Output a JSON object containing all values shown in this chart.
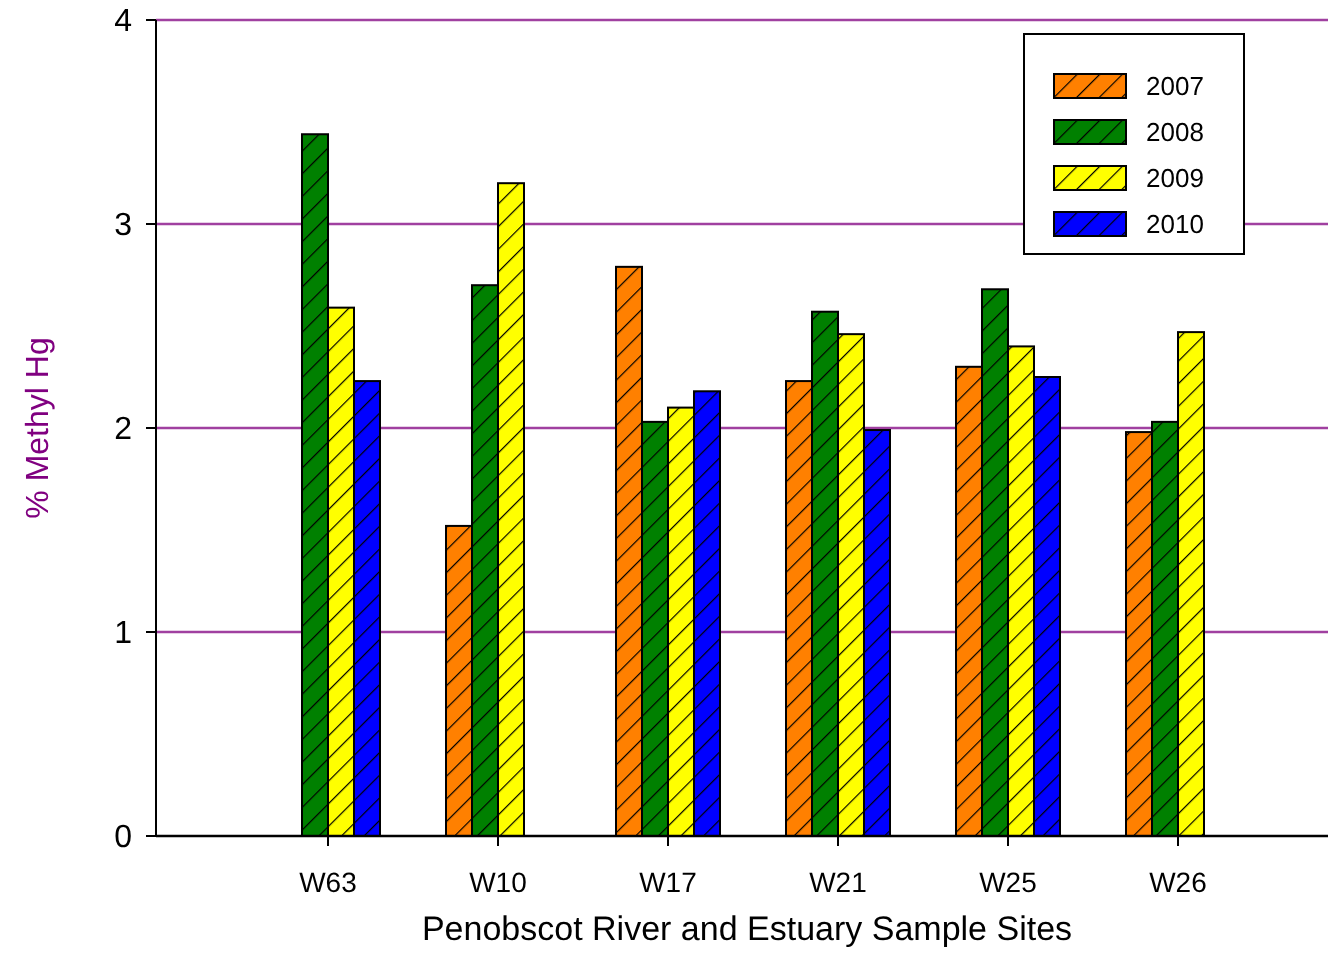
{
  "chart_data": {
    "type": "bar",
    "xlabel": "Penobscot River and Estuary Sample Sites",
    "ylabel": "% Methyl Hg",
    "categories": [
      "W63",
      "W10",
      "W17",
      "W21",
      "W25",
      "W26"
    ],
    "series": [
      {
        "name": "2007",
        "color": "#ff8000",
        "values": [
          null,
          1.52,
          2.79,
          2.23,
          2.3,
          1.98
        ]
      },
      {
        "name": "2008",
        "color": "#008000",
        "values": [
          3.44,
          2.7,
          2.03,
          2.57,
          2.68,
          2.03
        ]
      },
      {
        "name": "2009",
        "color": "#ffff00",
        "values": [
          2.59,
          3.2,
          2.1,
          2.46,
          2.4,
          2.47
        ]
      },
      {
        "name": "2010",
        "color": "#0000ff",
        "values": [
          2.23,
          null,
          2.18,
          1.99,
          2.25,
          null
        ]
      }
    ],
    "ylim": [
      0,
      4
    ],
    "yticks": [
      0,
      1,
      2,
      3,
      4
    ],
    "grid": "y",
    "legend": "top right"
  }
}
